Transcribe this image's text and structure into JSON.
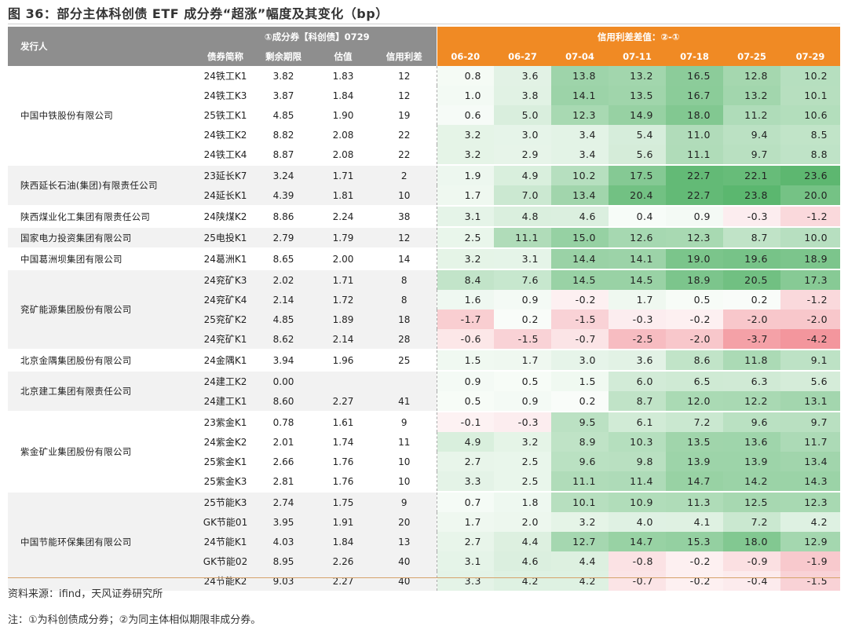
{
  "title": "图 36：部分主体科创债 ETF 成分券“超涨”幅度及其变化（bp）",
  "header": {
    "issuer": "发行人",
    "group1": "①成分券【科创债】0729",
    "group2": "信用利差差值：②-①",
    "cols": [
      "债券简称",
      "剩余期限",
      "估值",
      "信用利差"
    ],
    "dates": [
      "06-20",
      "06-27",
      "07-04",
      "07-11",
      "07-18",
      "07-25",
      "07-29"
    ]
  },
  "issuers": [
    {
      "name": "中国中铁股份有限公司",
      "rows": [
        {
          "bond": "24铁工K1",
          "term": "3.82",
          "val": "1.83",
          "spread": "12",
          "d": [
            "0.8",
            "3.6",
            "13.8",
            "13.2",
            "16.5",
            "12.8",
            "10.2"
          ]
        },
        {
          "bond": "24铁工K3",
          "term": "3.87",
          "val": "1.84",
          "spread": "12",
          "d": [
            "1.0",
            "3.8",
            "14.1",
            "13.5",
            "16.7",
            "13.2",
            "10.1"
          ]
        },
        {
          "bond": "25铁工K1",
          "term": "4.85",
          "val": "1.90",
          "spread": "19",
          "d": [
            "0.6",
            "5.0",
            "12.3",
            "14.9",
            "18.0",
            "11.2",
            "10.6"
          ]
        },
        {
          "bond": "24铁工K2",
          "term": "8.82",
          "val": "2.08",
          "spread": "22",
          "d": [
            "3.2",
            "3.0",
            "3.4",
            "5.4",
            "11.0",
            "9.4",
            "8.5"
          ]
        },
        {
          "bond": "24铁工K4",
          "term": "8.87",
          "val": "2.08",
          "spread": "22",
          "d": [
            "3.2",
            "2.9",
            "3.4",
            "5.6",
            "11.1",
            "9.7",
            "8.8"
          ]
        }
      ]
    },
    {
      "name": "陕西延长石油(集团)有限责任公司",
      "rows": [
        {
          "bond": "23延长K7",
          "term": "3.24",
          "val": "1.71",
          "spread": "2",
          "d": [
            "1.9",
            "4.9",
            "10.2",
            "17.5",
            "22.7",
            "22.1",
            "23.6"
          ]
        },
        {
          "bond": "24延长K1",
          "term": "4.39",
          "val": "1.81",
          "spread": "10",
          "d": [
            "1.7",
            "7.0",
            "13.4",
            "20.4",
            "22.7",
            "23.8",
            "20.0"
          ]
        }
      ]
    },
    {
      "name": "陕西煤业化工集团有限责任公司",
      "rows": [
        {
          "bond": "24陕煤K2",
          "term": "8.86",
          "val": "2.24",
          "spread": "38",
          "d": [
            "3.1",
            "4.8",
            "4.6",
            "0.4",
            "0.9",
            "-0.3",
            "-1.2"
          ]
        }
      ]
    },
    {
      "name": "国家电力投资集团有限公司",
      "rows": [
        {
          "bond": "25电投K1",
          "term": "2.79",
          "val": "1.79",
          "spread": "12",
          "d": [
            "2.5",
            "11.1",
            "15.0",
            "12.6",
            "12.3",
            "8.7",
            "10.0"
          ]
        }
      ]
    },
    {
      "name": "中国葛洲坝集团有限公司",
      "rows": [
        {
          "bond": "24葛洲K1",
          "term": "8.65",
          "val": "2.00",
          "spread": "14",
          "d": [
            "3.2",
            "3.1",
            "14.4",
            "14.1",
            "19.0",
            "19.6",
            "18.9"
          ]
        }
      ]
    },
    {
      "name": "兖矿能源集团股份有限公司",
      "rows": [
        {
          "bond": "24兖矿K3",
          "term": "2.02",
          "val": "1.71",
          "spread": "8",
          "d": [
            "8.4",
            "7.6",
            "14.5",
            "14.5",
            "18.9",
            "20.5",
            "17.3"
          ]
        },
        {
          "bond": "24兖矿K4",
          "term": "2.14",
          "val": "1.72",
          "spread": "8",
          "d": [
            "1.6",
            "0.9",
            "-0.2",
            "1.7",
            "0.5",
            "0.2",
            "-1.2"
          ]
        },
        {
          "bond": "25兖矿K2",
          "term": "4.85",
          "val": "1.89",
          "spread": "18",
          "d": [
            "-1.7",
            "0.2",
            "-1.5",
            "-0.3",
            "-0.2",
            "-2.0",
            "-2.0"
          ]
        },
        {
          "bond": "24兖矿K1",
          "term": "8.62",
          "val": "2.14",
          "spread": "28",
          "d": [
            "-0.6",
            "-1.5",
            "-0.7",
            "-2.5",
            "-2.0",
            "-3.7",
            "-4.2"
          ]
        }
      ]
    },
    {
      "name": "北京金隅集团股份有限公司",
      "rows": [
        {
          "bond": "24金隅K1",
          "term": "3.94",
          "val": "1.96",
          "spread": "25",
          "d": [
            "1.5",
            "1.7",
            "3.0",
            "3.6",
            "8.6",
            "11.8",
            "9.1"
          ]
        }
      ]
    },
    {
      "name": "北京建工集团有限责任公司",
      "rows": [
        {
          "bond": "24建工K2",
          "term": "0.00",
          "val": "",
          "spread": "",
          "d": [
            "0.9",
            "0.5",
            "1.5",
            "6.0",
            "6.5",
            "6.3",
            "5.6"
          ]
        },
        {
          "bond": "24建工K1",
          "term": "8.60",
          "val": "2.27",
          "spread": "41",
          "d": [
            "0.5",
            "0.9",
            "0.2",
            "8.7",
            "12.0",
            "12.2",
            "13.1"
          ]
        }
      ]
    },
    {
      "name": "紫金矿业集团股份有限公司",
      "rows": [
        {
          "bond": "23紫金K1",
          "term": "0.78",
          "val": "1.61",
          "spread": "9",
          "d": [
            "-0.1",
            "-0.3",
            "9.5",
            "6.1",
            "7.2",
            "9.6",
            "9.7"
          ]
        },
        {
          "bond": "24紫金K2",
          "term": "2.01",
          "val": "1.74",
          "spread": "11",
          "d": [
            "4.9",
            "3.2",
            "8.9",
            "10.3",
            "13.5",
            "13.6",
            "11.7"
          ]
        },
        {
          "bond": "25紫金K1",
          "term": "2.66",
          "val": "1.76",
          "spread": "10",
          "d": [
            "2.7",
            "2.5",
            "9.6",
            "9.8",
            "13.9",
            "13.9",
            "13.4"
          ]
        },
        {
          "bond": "25紫金K3",
          "term": "2.81",
          "val": "1.76",
          "spread": "10",
          "d": [
            "3.3",
            "2.5",
            "11.1",
            "11.4",
            "14.7",
            "14.2",
            "14.3"
          ]
        }
      ]
    },
    {
      "name": "中国节能环保集团有限公司",
      "rows": [
        {
          "bond": "25节能K3",
          "term": "2.74",
          "val": "1.75",
          "spread": "9",
          "d": [
            "0.7",
            "1.8",
            "10.1",
            "10.9",
            "11.3",
            "12.5",
            "12.3"
          ]
        },
        {
          "bond": "GK节能01",
          "term": "3.95",
          "val": "1.91",
          "spread": "20",
          "d": [
            "1.7",
            "2.0",
            "3.2",
            "4.0",
            "4.1",
            "7.2",
            "4.2"
          ]
        },
        {
          "bond": "24节能K1",
          "term": "4.03",
          "val": "1.84",
          "spread": "13",
          "d": [
            "2.7",
            "4.4",
            "12.7",
            "14.7",
            "15.3",
            "18.0",
            "12.9"
          ]
        },
        {
          "bond": "GK节能02",
          "term": "8.95",
          "val": "2.26",
          "spread": "40",
          "d": [
            "3.1",
            "4.6",
            "4.4",
            "-0.8",
            "-0.2",
            "-0.9",
            "-1.9"
          ]
        },
        {
          "bond": "24节能K2",
          "term": "9.03",
          "val": "2.27",
          "spread": "40",
          "d": [
            "3.3",
            "4.2",
            "4.2",
            "-0.7",
            "-0.2",
            "-0.4",
            "-1.5"
          ]
        }
      ]
    }
  ],
  "footer": {
    "source": "资料来源：ifind，天风证券研究所",
    "note": "注：①为科创债成分券；②为同主体相似期限非成分券。"
  }
}
